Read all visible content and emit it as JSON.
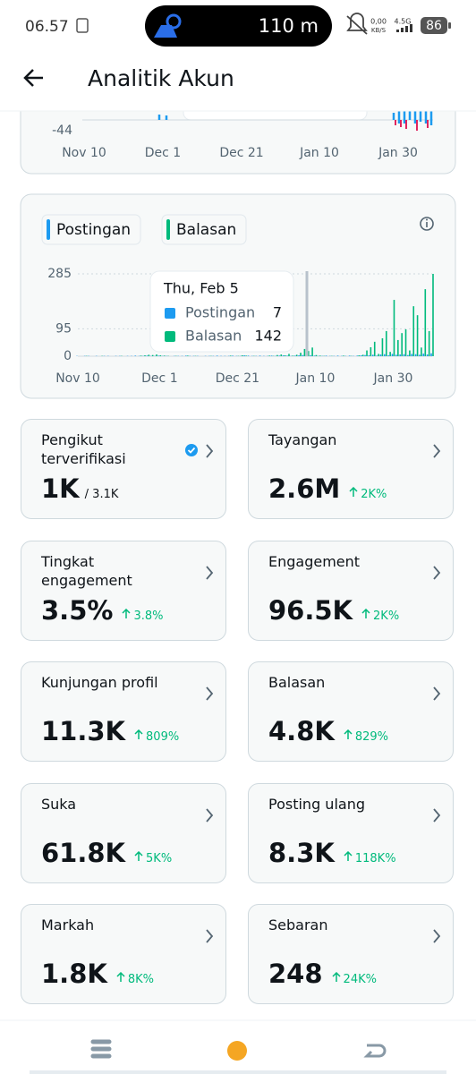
{
  "status_bar": {
    "time": "06.57",
    "distance": "110 m",
    "net_speed": "0,00",
    "net_unit": "KB/S",
    "network": "4.5G",
    "battery": "86"
  },
  "header": {
    "title": "Analitik Akun"
  },
  "top_chart": {
    "yticks": [
      -44
    ],
    "xticks": [
      "Nov 10",
      "Dec 1",
      "Dec 21",
      "Jan 10",
      "Jan 30"
    ]
  },
  "activity_chart": {
    "type": "bar",
    "xlim": [
      0,
      91
    ],
    "ylim": [
      0,
      285
    ],
    "yticks": [
      0,
      95,
      285
    ],
    "xticks": [
      {
        "value": 0,
        "label": "Nov 10"
      },
      {
        "value": 21,
        "label": "Dec 1"
      },
      {
        "value": 41,
        "label": "Dec 21"
      },
      {
        "value": 61,
        "label": "Jan 10"
      },
      {
        "value": 81,
        "label": "Jan 30"
      }
    ],
    "series": [
      {
        "name": "Postingan",
        "color": "#1d9bf0",
        "values": [
          1,
          0,
          1,
          1,
          0,
          1,
          0,
          1,
          1,
          0,
          1,
          1,
          0,
          1,
          1,
          2,
          1,
          1,
          2,
          1,
          1,
          2,
          1,
          1,
          0,
          1,
          1,
          1,
          2,
          1,
          1,
          1,
          0,
          1,
          1,
          1,
          2,
          1,
          1,
          1,
          2,
          1,
          1,
          3,
          2,
          1,
          1,
          2,
          1,
          1,
          2,
          1,
          2,
          3,
          2,
          1,
          2,
          3,
          4,
          2,
          3,
          2,
          1,
          1,
          2,
          1,
          1,
          2,
          1,
          1,
          2,
          1,
          2,
          3,
          4,
          3,
          5,
          2,
          6,
          7,
          3,
          8,
          5,
          6,
          7,
          4,
          8,
          7,
          5,
          9,
          6,
          10
        ]
      },
      {
        "name": "Balasan",
        "color": "#00ba7c",
        "values": [
          0,
          0,
          1,
          0,
          0,
          0,
          1,
          0,
          0,
          0,
          0,
          1,
          0,
          0,
          0,
          0,
          2,
          3,
          5,
          4,
          6,
          3,
          2,
          1,
          0,
          1,
          0,
          0,
          2,
          0,
          1,
          0,
          0,
          0,
          1,
          0,
          0,
          0,
          0,
          2,
          0,
          1,
          3,
          2,
          0,
          1,
          0,
          0,
          0,
          2,
          1,
          4,
          6,
          3,
          8,
          2,
          5,
          12,
          25,
          18,
          30,
          4,
          2,
          1,
          0,
          1,
          0,
          0,
          2,
          0,
          1,
          0,
          3,
          5,
          20,
          31,
          50,
          8,
          62,
          87,
          15,
          195,
          56,
          80,
          93,
          20,
          173,
          142,
          30,
          232,
          87,
          285
        ]
      }
    ],
    "tooltip": {
      "date": "Thu, Feb 5",
      "rows": [
        {
          "name": "Postingan",
          "value": 7
        },
        {
          "name": "Balasan",
          "value": 142
        }
      ]
    }
  },
  "cards": [
    {
      "title": "Pengikut terverifikasi",
      "value": "1K",
      "total": "/ 3.1K",
      "verified": true
    },
    {
      "title": "Tayangan",
      "value": "2.6M",
      "change": "2K%"
    },
    {
      "title": "Tingkat engagement",
      "value": "3.5%",
      "change": "3.8%"
    },
    {
      "title": "Engagement",
      "value": "96.5K",
      "change": "2K%"
    },
    {
      "title": "Kunjungan profil",
      "value": "11.3K",
      "change": "809%"
    },
    {
      "title": "Balasan",
      "value": "4.8K",
      "change": "829%"
    },
    {
      "title": "Suka",
      "value": "61.8K",
      "change": "5K%"
    },
    {
      "title": "Posting ulang",
      "value": "8.3K",
      "change": "118K%"
    },
    {
      "title": "Markah",
      "value": "1.8K",
      "change": "8K%"
    },
    {
      "title": "Sebaran",
      "value": "248",
      "change": "24K%"
    }
  ]
}
